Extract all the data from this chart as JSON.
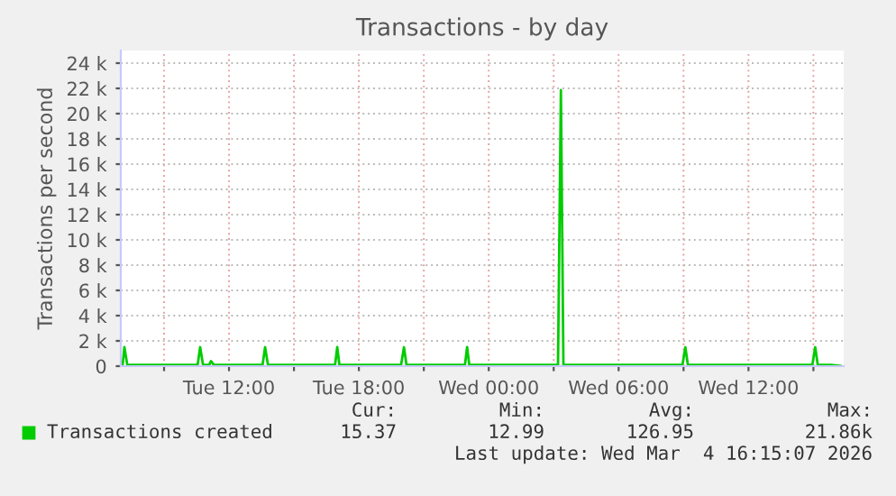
{
  "chart_data": {
    "type": "line",
    "title": "Transactions - by day",
    "ylabel": "Transactions per second",
    "x": [
      "2026-03-03T07:05",
      "2026-03-03T07:10",
      "2026-03-03T07:18",
      "2026-03-03T10:33",
      "2026-03-03T10:40",
      "2026-03-03T10:48",
      "2026-03-03T11:05",
      "2026-03-03T11:10",
      "2026-03-03T11:18",
      "2026-03-03T13:33",
      "2026-03-03T13:40",
      "2026-03-03T13:48",
      "2026-03-03T16:54",
      "2026-03-03T17:00",
      "2026-03-03T17:06",
      "2026-03-03T19:57",
      "2026-03-03T20:05",
      "2026-03-03T20:12",
      "2026-03-03T22:54",
      "2026-03-03T23:00",
      "2026-03-03T23:06",
      "2026-03-04T03:12",
      "2026-03-04T03:20",
      "2026-03-04T03:27",
      "2026-03-04T08:57",
      "2026-03-04T09:05",
      "2026-03-04T09:12",
      "2026-03-04T14:57",
      "2026-03-04T15:05",
      "2026-03-04T15:12",
      "2026-03-04T15:48",
      "2026-03-04T16:15"
    ],
    "series": [
      {
        "name": "Transactions created",
        "color": "#00cc00",
        "values": [
          100,
          1500,
          100,
          100,
          1500,
          100,
          100,
          400,
          100,
          100,
          1500,
          100,
          100,
          1500,
          100,
          100,
          1500,
          100,
          100,
          1500,
          100,
          100,
          21860,
          100,
          100,
          1500,
          100,
          100,
          1500,
          100,
          100,
          15.37
        ]
      }
    ],
    "xlim": [
      "2026-03-03T07:00",
      "2026-03-04T16:24"
    ],
    "xticks": [
      {
        "value": "2026-03-03T09:00",
        "label": null
      },
      {
        "value": "2026-03-03T12:00",
        "label": "Tue 12:00"
      },
      {
        "value": "2026-03-03T15:00",
        "label": null
      },
      {
        "value": "2026-03-03T18:00",
        "label": "Tue 18:00"
      },
      {
        "value": "2026-03-03T21:00",
        "label": null
      },
      {
        "value": "2026-03-04T00:00",
        "label": "Wed 00:00"
      },
      {
        "value": "2026-03-04T03:00",
        "label": null
      },
      {
        "value": "2026-03-04T06:00",
        "label": "Wed 06:00"
      },
      {
        "value": "2026-03-04T09:00",
        "label": null
      },
      {
        "value": "2026-03-04T12:00",
        "label": "Wed 12:00"
      },
      {
        "value": "2026-03-04T15:00",
        "label": null
      }
    ],
    "ylim": [
      0,
      25000
    ],
    "yticks": [
      0,
      {
        "value": 2000,
        "label": "2 k"
      },
      {
        "value": 4000,
        "label": "4 k"
      },
      {
        "value": 6000,
        "label": "6 k"
      },
      {
        "value": 8000,
        "label": "8 k"
      },
      {
        "value": 10000,
        "label": "10 k"
      },
      {
        "value": 12000,
        "label": "12 k"
      },
      {
        "value": 14000,
        "label": "14 k"
      },
      {
        "value": 16000,
        "label": "16 k"
      },
      {
        "value": 18000,
        "label": "18 k"
      },
      {
        "value": 20000,
        "label": "20 k"
      },
      {
        "value": 22000,
        "label": "22 k"
      },
      {
        "value": 24000,
        "label": "24 k"
      }
    ],
    "grid": true,
    "legend": "bottom",
    "line_style": "solid",
    "marker": "none",
    "annotations": [
      "Cur:",
      "Min:",
      "Avg:",
      "Max:",
      "15.37",
      "12.99",
      "126.95",
      "21.86k",
      "Last update: Wed Mar  4 16:15:07 2026"
    ]
  }
}
